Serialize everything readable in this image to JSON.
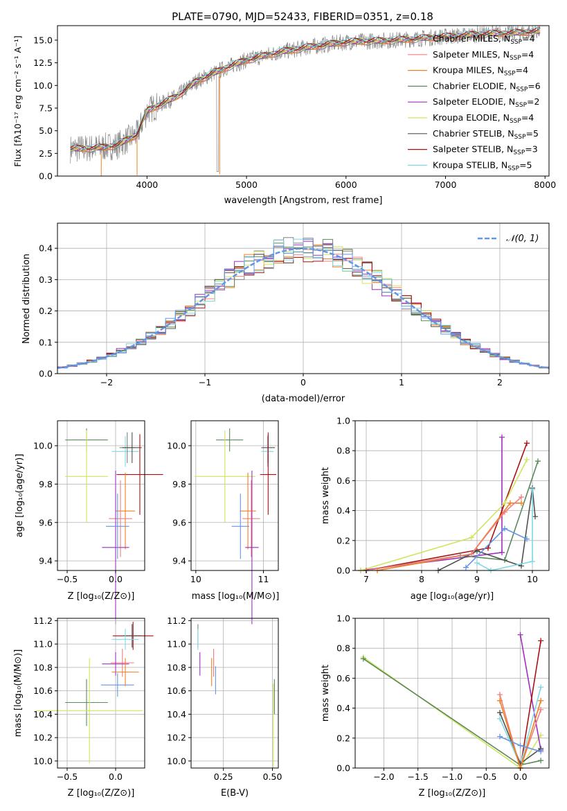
{
  "colors": {
    "Chabrier MILES": "#808080",
    "Salpeter MILES": "#ef7f7f",
    "Kroupa MILES": "#ef7f1f",
    "Chabrier ELODIE": "#5a8a5a",
    "Salpeter ELODIE": "#9e2fbe",
    "Kroupa ELODIE": "#cfe55f",
    "Chabrier STELIB": "#505050",
    "Salpeter STELIB": "#aa1010",
    "Kroupa STELIB": "#7fd8e2",
    "model_blue": "#6496e6",
    "data_gray": "#888888"
  },
  "chart_data": [
    {
      "id": "spectrum",
      "type": "line",
      "title": "PLATE=0790, MJD=52433, FIBERID=0351, z=0.18",
      "xlabel": "wavelength [Angstrom, rest frame]",
      "ylabel": "Flux [fλ10⁻¹⁷ erg cm⁻² s⁻¹ A⁻¹]",
      "xlim": [
        3100,
        8040
      ],
      "ylim": [
        0,
        16.6
      ],
      "xticks": [
        "4000",
        "5000",
        "6000",
        "7000",
        "8000"
      ],
      "yticks": [
        "0.0",
        "2.5",
        "5.0",
        "7.5",
        "10.0",
        "12.5",
        "15.0"
      ],
      "legend_placement": "upper right",
      "legend": [
        {
          "model": "Chabrier MILES",
          "label": "Chabrier MILES, N",
          "sub": "SSP",
          "n": "=4"
        },
        {
          "model": "Salpeter MILES",
          "label": "Salpeter MILES, N",
          "sub": "SSP",
          "n": "=4"
        },
        {
          "model": "Kroupa MILES",
          "label": "Kroupa MILES, N",
          "sub": "SSP",
          "n": "=4"
        },
        {
          "model": "Chabrier ELODIE",
          "label": "Chabrier ELODIE, N",
          "sub": "SSP",
          "n": "=6"
        },
        {
          "model": "Salpeter ELODIE",
          "label": "Salpeter ELODIE, N",
          "sub": "SSP",
          "n": "=2"
        },
        {
          "model": "Kroupa ELODIE",
          "label": "Kroupa ELODIE, N",
          "sub": "SSP",
          "n": "=4"
        },
        {
          "model": "Chabrier STELIB",
          "label": "Chabrier STELIB, N",
          "sub": "SSP",
          "n": "=5"
        },
        {
          "model": "Salpeter STELIB",
          "label": "Salpeter STELIB, N",
          "sub": "SSP",
          "n": "=3"
        },
        {
          "model": "Kroupa STELIB",
          "label": "Kroupa STELIB, N",
          "sub": "SSP",
          "n": "=5"
        }
      ],
      "continuum_knots": {
        "x": [
          3230,
          3500,
          3700,
          3900,
          4000,
          4300,
          4500,
          4800,
          5000,
          5300,
          5600,
          6000,
          6500,
          7000,
          7400,
          7700,
          7950
        ],
        "y": [
          3.0,
          3.1,
          3.4,
          4.6,
          7.2,
          8.8,
          10.5,
          12.0,
          12.8,
          13.6,
          14.2,
          14.8,
          15.0,
          15.4,
          15.7,
          15.8,
          16.0
        ]
      }
    },
    {
      "id": "residuals",
      "type": "histogram",
      "xlabel": "(data-model)/error",
      "ylabel": "Normed distribution",
      "xlim": [
        -2.5,
        2.5
      ],
      "ylim": [
        0,
        0.48
      ],
      "xticks": [
        "−2",
        "−1",
        "0",
        "1",
        "2"
      ],
      "yticks": [
        "0.0",
        "0.1",
        "0.2",
        "0.3",
        "0.4"
      ],
      "legend": "𝒩(0, 1)",
      "legend_placement": "upper right",
      "grid": true,
      "bin_width": 0.1,
      "gaussian": {
        "mu": 0,
        "sigma": 1
      }
    },
    {
      "id": "age-vs-Z",
      "type": "errorbar",
      "xlabel": "Z [log₁₀(Z/Z⊙)]",
      "ylabel": "age  [log₁₀(age/yr)]",
      "xlim": [
        -0.6,
        0.3
      ],
      "ylim": [
        9.35,
        10.13
      ],
      "xticks": [
        "−0.5",
        "0.0"
      ],
      "yticks": [
        "9.4",
        "9.6",
        "9.8",
        "10.0"
      ],
      "grid": true,
      "points": [
        {
          "model": "Chabrier ELODIE",
          "x": -0.3,
          "xerr": 0.22,
          "y": 10.03,
          "yerr": 0.06
        },
        {
          "model": "Kroupa ELODIE",
          "x": -0.3,
          "xerr": 0.22,
          "y": 9.84,
          "yerr": 0.24
        },
        {
          "model": "Kroupa STELIB",
          "x": 0.1,
          "xerr": 0.14,
          "y": 9.97,
          "yerr": 0.08
        },
        {
          "model": "Chabrier MILES",
          "x": 0.12,
          "xerr": 0.08,
          "y": 9.99,
          "yerr": 0.08
        },
        {
          "model": "Chabrier STELIB",
          "x": 0.17,
          "xerr": 0.1,
          "y": 9.99,
          "yerr": 0.08
        },
        {
          "model": "Salpeter STELIB",
          "x": 0.25,
          "xerr": 0.24,
          "y": 9.85,
          "yerr": 0.21
        },
        {
          "model": "Kroupa MILES",
          "x": 0.1,
          "xerr": 0.1,
          "y": 9.66,
          "yerr": 0.2
        },
        {
          "model": "Salpeter MILES",
          "x": 0.05,
          "xerr": 0.12,
          "y": 9.62,
          "yerr": 0.2
        },
        {
          "model": "Salpeter ELODIE",
          "x": 0.0,
          "xerr": 0.14,
          "y": 9.47,
          "yerr": 0.4
        },
        {
          "model": "model_blue",
          "x": 0.02,
          "xerr": 0.12,
          "y": 9.58,
          "yerr": 0.17
        }
      ]
    },
    {
      "id": "age-vs-mass",
      "type": "errorbar",
      "xlabel": "mass [log₁₀(M/M⊙)]",
      "ylabel": "",
      "xlim": [
        9.93,
        11.22
      ],
      "ylim": [
        9.35,
        10.13
      ],
      "xticks": [
        "10",
        "11"
      ],
      "yticks": [
        "9.4",
        "9.6",
        "9.8",
        "10.0"
      ],
      "grid": true,
      "points": [
        {
          "model": "Chabrier ELODIE",
          "x": 10.5,
          "xerr": 0.2,
          "y": 10.03,
          "yerr": 0.06
        },
        {
          "model": "Kroupa ELODIE",
          "x": 10.43,
          "xerr": 0.45,
          "y": 9.84,
          "yerr": 0.24
        },
        {
          "model": "Kroupa STELIB",
          "x": 11.06,
          "xerr": 0.09,
          "y": 9.97,
          "yerr": 0.08
        },
        {
          "model": "Chabrier STELIB",
          "x": 11.07,
          "xerr": 0.1,
          "y": 9.99,
          "yerr": 0.08
        },
        {
          "model": "Salpeter STELIB",
          "x": 11.07,
          "xerr": 0.12,
          "y": 9.85,
          "yerr": 0.21
        },
        {
          "model": "Kroupa MILES",
          "x": 10.77,
          "xerr": 0.12,
          "y": 9.66,
          "yerr": 0.2
        },
        {
          "model": "Salpeter MILES",
          "x": 10.82,
          "xerr": 0.13,
          "y": 9.62,
          "yerr": 0.2
        },
        {
          "model": "Salpeter ELODIE",
          "x": 10.83,
          "xerr": 0.1,
          "y": 9.47,
          "yerr": 0.4
        },
        {
          "model": "model_blue",
          "x": 10.66,
          "xerr": 0.13,
          "y": 9.58,
          "yerr": 0.17
        }
      ]
    },
    {
      "id": "massweight-vs-age",
      "type": "line",
      "xlabel": "age  [log₁₀(age/yr)]",
      "ylabel": "mass weight",
      "xlim": [
        6.8,
        10.3
      ],
      "ylim": [
        0,
        1.0
      ],
      "xticks": [
        "7",
        "8",
        "9",
        "10"
      ],
      "yticks": [
        "0.0",
        "0.2",
        "0.4",
        "0.6",
        "0.8",
        "1.0"
      ],
      "grid": true,
      "series": [
        {
          "model": "Salpeter ELODIE",
          "x": [
            6.9,
            9.45,
            9.45
          ],
          "y": [
            0.0,
            0.12,
            0.89
          ]
        },
        {
          "model": "Salpeter STELIB",
          "x": [
            7.0,
            9.2,
            9.9
          ],
          "y": [
            0.0,
            0.15,
            0.85
          ]
        },
        {
          "model": "Kroupa ELODIE",
          "x": [
            6.9,
            8.9,
            9.5,
            9.9
          ],
          "y": [
            0.0,
            0.22,
            0.45,
            0.74
          ]
        },
        {
          "model": "Chabrier ELODIE",
          "x": [
            7.0,
            8.7,
            9.5,
            10.1
          ],
          "y": [
            0.0,
            0.1,
            0.07,
            0.73
          ]
        },
        {
          "model": "Chabrier STELIB",
          "x": [
            8.3,
            9.0,
            9.8,
            10.0,
            10.05
          ],
          "y": [
            0.0,
            0.13,
            0.03,
            0.55,
            0.36
          ]
        },
        {
          "model": "Kroupa STELIB",
          "x": [
            9.0,
            9.25,
            10.0,
            10.0
          ],
          "y": [
            0.05,
            0.0,
            0.06,
            0.54
          ]
        },
        {
          "model": "Kroupa MILES",
          "x": [
            7.2,
            8.9,
            9.6,
            9.8
          ],
          "y": [
            0.0,
            0.11,
            0.45,
            0.45
          ]
        },
        {
          "model": "Salpeter MILES",
          "x": [
            7.0,
            8.9,
            9.5,
            9.8
          ],
          "y": [
            0.0,
            0.11,
            0.39,
            0.49
          ]
        },
        {
          "model": "model_blue",
          "x": [
            8.8,
            9.5,
            9.9
          ],
          "y": [
            0.02,
            0.28,
            0.21
          ]
        }
      ]
    },
    {
      "id": "mass-vs-Z",
      "type": "errorbar",
      "xlabel": "Z [log₁₀(Z/Z⊙)]",
      "ylabel": "mass [log₁₀(M/M⊙)]",
      "xlim": [
        -0.6,
        0.3
      ],
      "ylim": [
        9.94,
        11.22
      ],
      "xticks": [
        "−0.5",
        "0.0"
      ],
      "yticks": [
        "10.0",
        "10.2",
        "10.4",
        "10.6",
        "10.8",
        "11.0",
        "11.2"
      ],
      "grid": true,
      "points": [
        {
          "model": "Chabrier ELODIE",
          "x": -0.3,
          "xerr": 0.22,
          "y": 10.5,
          "yerr": 0.2
        },
        {
          "model": "Kroupa ELODIE",
          "x": -0.27,
          "xerr": 0.55,
          "y": 10.43,
          "yerr": 0.45
        },
        {
          "model": "Salpeter STELIB",
          "x": 0.18,
          "xerr": 0.21,
          "y": 11.07,
          "yerr": 0.12
        },
        {
          "model": "Chabrier STELIB",
          "x": 0.17,
          "xerr": 0.1,
          "y": 11.07,
          "yerr": 0.1
        },
        {
          "model": "Kroupa STELIB",
          "x": 0.1,
          "xerr": 0.14,
          "y": 11.04,
          "yerr": 0.09
        },
        {
          "model": "Salpeter MILES",
          "x": 0.07,
          "xerr": 0.12,
          "y": 10.84,
          "yerr": 0.12
        },
        {
          "model": "Salpeter ELODIE",
          "x": 0.0,
          "xerr": 0.14,
          "y": 10.83,
          "yerr": 0.1
        },
        {
          "model": "Kroupa MILES",
          "x": 0.1,
          "xerr": 0.14,
          "y": 10.76,
          "yerr": 0.12
        },
        {
          "model": "model_blue",
          "x": 0.02,
          "xerr": 0.17,
          "y": 10.65,
          "yerr": 0.1
        }
      ]
    },
    {
      "id": "mass-vs-EBV",
      "type": "errorbar",
      "xlabel": "E(B-V)",
      "ylabel": "",
      "xlim": [
        0.085,
        0.53
      ],
      "ylim": [
        9.94,
        11.22
      ],
      "xticks": [
        "0.25",
        "0.50"
      ],
      "yticks": [
        "10.0",
        "10.2",
        "10.4",
        "10.6",
        "10.8",
        "11.0",
        "11.2"
      ],
      "grid": true,
      "points": [
        {
          "model": "Chabrier MILES",
          "x": 0.12,
          "xerr": 0.0,
          "y": 11.07,
          "yerr": 0.1
        },
        {
          "model": "Salpeter ELODIE",
          "x": 0.13,
          "xerr": 0.0,
          "y": 10.83,
          "yerr": 0.1
        },
        {
          "model": "Kroupa STELIB",
          "x": 0.12,
          "xerr": 0.0,
          "y": 11.04,
          "yerr": 0.09
        },
        {
          "model": "Salpeter MILES",
          "x": 0.2,
          "xerr": 0.0,
          "y": 10.84,
          "yerr": 0.12
        },
        {
          "model": "Kroupa MILES",
          "x": 0.19,
          "xerr": 0.0,
          "y": 10.76,
          "yerr": 0.12
        },
        {
          "model": "model_blue",
          "x": 0.21,
          "xerr": 0.0,
          "y": 10.69,
          "yerr": 0.12
        },
        {
          "model": "Kroupa ELODIE",
          "x": 0.505,
          "xerr": 0.0,
          "y": 10.3,
          "yerr": 0.36
        },
        {
          "model": "Chabrier ELODIE",
          "x": 0.51,
          "xerr": 0.0,
          "y": 10.55,
          "yerr": 0.15
        }
      ]
    },
    {
      "id": "massweight-vs-Z",
      "type": "line",
      "xlabel": "Z [log₁₀(Z/Z⊙)]",
      "ylabel": "mass weight",
      "xlim": [
        -2.42,
        0.42
      ],
      "ylim": [
        0,
        1.0
      ],
      "xticks": [
        "−2.0",
        "−1.5",
        "−1.0",
        "−0.5",
        "0.0"
      ],
      "yticks": [
        "0.0",
        "0.2",
        "0.4",
        "0.6",
        "0.8",
        "1.0"
      ],
      "grid": true,
      "series": [
        {
          "model": "Kroupa ELODIE",
          "x": [
            -2.3,
            0.0,
            0.3
          ],
          "y": [
            0.74,
            0.0,
            0.22
          ]
        },
        {
          "model": "Chabrier ELODIE",
          "x": [
            -2.3,
            0.0,
            0.3
          ],
          "y": [
            0.73,
            0.02,
            0.05
          ]
        },
        {
          "model": "Salpeter ELODIE",
          "x": [
            0.0,
            0.3
          ],
          "y": [
            0.89,
            0.12
          ]
        },
        {
          "model": "Salpeter STELIB",
          "x": [
            0.0,
            0.3
          ],
          "y": [
            0.0,
            0.85
          ]
        },
        {
          "model": "Kroupa STELIB",
          "x": [
            -0.3,
            0.0,
            0.3
          ],
          "y": [
            0.33,
            0.02,
            0.54
          ]
        },
        {
          "model": "Chabrier STELIB",
          "x": [
            -0.3,
            0.0,
            0.3
          ],
          "y": [
            0.37,
            0.03,
            0.13
          ]
        },
        {
          "model": "Salpeter MILES",
          "x": [
            -0.3,
            0.0,
            0.3
          ],
          "y": [
            0.49,
            0.0,
            0.39
          ]
        },
        {
          "model": "Kroupa MILES",
          "x": [
            -0.3,
            0.0,
            0.3
          ],
          "y": [
            0.45,
            0.0,
            0.45
          ]
        },
        {
          "model": "model_blue",
          "x": [
            -0.3,
            0.0,
            0.3
          ],
          "y": [
            0.21,
            0.15,
            0.11
          ]
        }
      ]
    }
  ]
}
